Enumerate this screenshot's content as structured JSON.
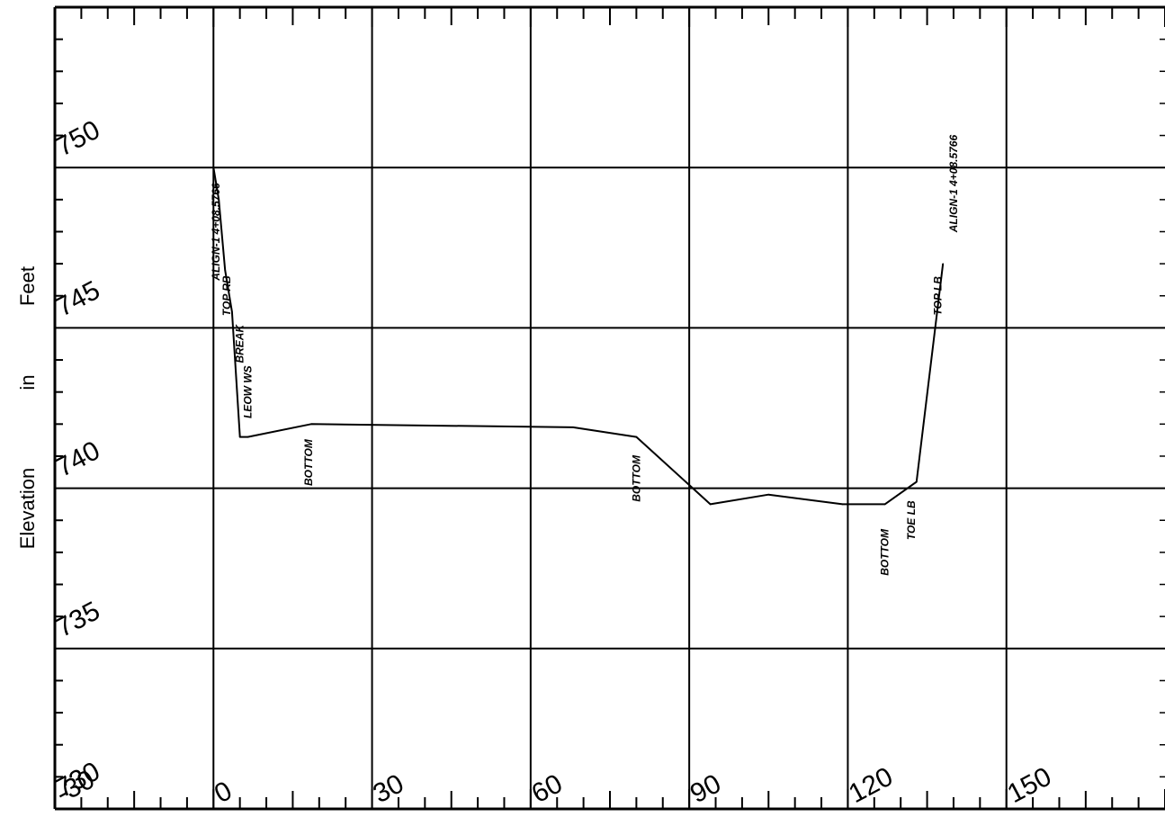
{
  "chart_data": {
    "type": "line",
    "ylabel": [
      "Elevation",
      "in",
      "Feet"
    ],
    "xlim": [
      -30,
      180
    ],
    "ylim": [
      730,
      755
    ],
    "x_tick_labels": [
      "-30",
      "0",
      "30",
      "60",
      "90",
      "120",
      "150"
    ],
    "y_tick_labels": [
      "730",
      "735",
      "740",
      "745",
      "750"
    ],
    "grid": true,
    "series": [
      {
        "x": [
          0.0,
          1.0,
          2.2,
          3.5,
          5.0,
          6.5,
          18.5,
          68.0,
          80.0,
          94.0,
          105.0,
          119.0,
          127.0,
          133.0,
          138.0
        ],
        "y": [
          750.0,
          749.0,
          746.8,
          745.5,
          741.6,
          741.6,
          742.0,
          741.9,
          741.6,
          739.5,
          739.8,
          739.5,
          739.5,
          740.2,
          747.0
        ]
      }
    ],
    "annotations": [
      {
        "text": "ALIGN-1 4+08.5766",
        "x": 0.5,
        "y": 748.0
      },
      {
        "text": "TOP RB",
        "x": 2.5,
        "y": 746.0
      },
      {
        "text": "BREAK",
        "x": 5.0,
        "y": 744.5
      },
      {
        "text": "LEOW WS",
        "x": 6.5,
        "y": 743.0
      },
      {
        "text": "BOTTOM",
        "x": 18.0,
        "y": 740.8
      },
      {
        "text": "BOTTOM",
        "x": 80.0,
        "y": 740.3
      },
      {
        "text": "BOTTOM",
        "x": 127.0,
        "y": 738.0
      },
      {
        "text": "TOE LB",
        "x": 132.0,
        "y": 739.0
      },
      {
        "text": "TOP LB",
        "x": 137.0,
        "y": 746.0
      },
      {
        "text": "ALIGN-1 4+08.5766",
        "x": 140.0,
        "y": 749.5
      }
    ]
  }
}
